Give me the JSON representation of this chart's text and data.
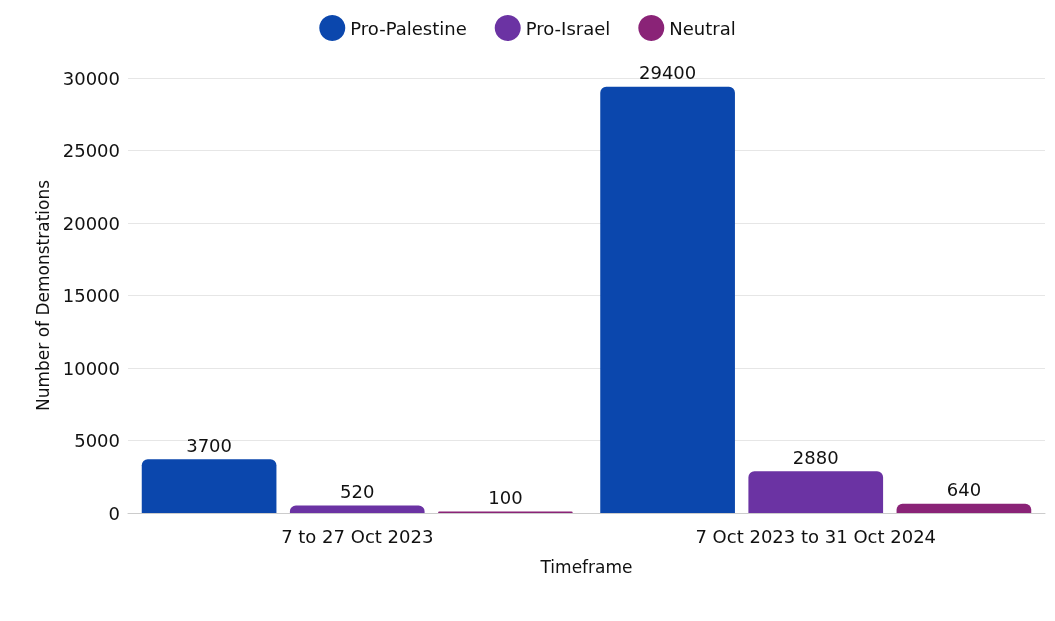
{
  "chart_data": {
    "type": "bar",
    "xlabel": "Timeframe",
    "ylabel": "Number of Demonstrations",
    "categories": [
      "7 to 27 Oct 2023",
      "7 Oct 2023 to 31 Oct 2024"
    ],
    "series": [
      {
        "name": "Pro-Palestine",
        "color": "#0b47ad",
        "values": [
          3700,
          29400
        ]
      },
      {
        "name": "Pro-Israel",
        "color": "#6b33a3",
        "values": [
          520,
          2880
        ]
      },
      {
        "name": "Neutral",
        "color": "#8a2377",
        "values": [
          100,
          640
        ]
      }
    ],
    "ylim": [
      0,
      30000
    ],
    "yticks": [
      0,
      5000,
      10000,
      15000,
      20000,
      25000,
      30000
    ],
    "grid": "y",
    "legend": "top",
    "data_labels": true
  }
}
